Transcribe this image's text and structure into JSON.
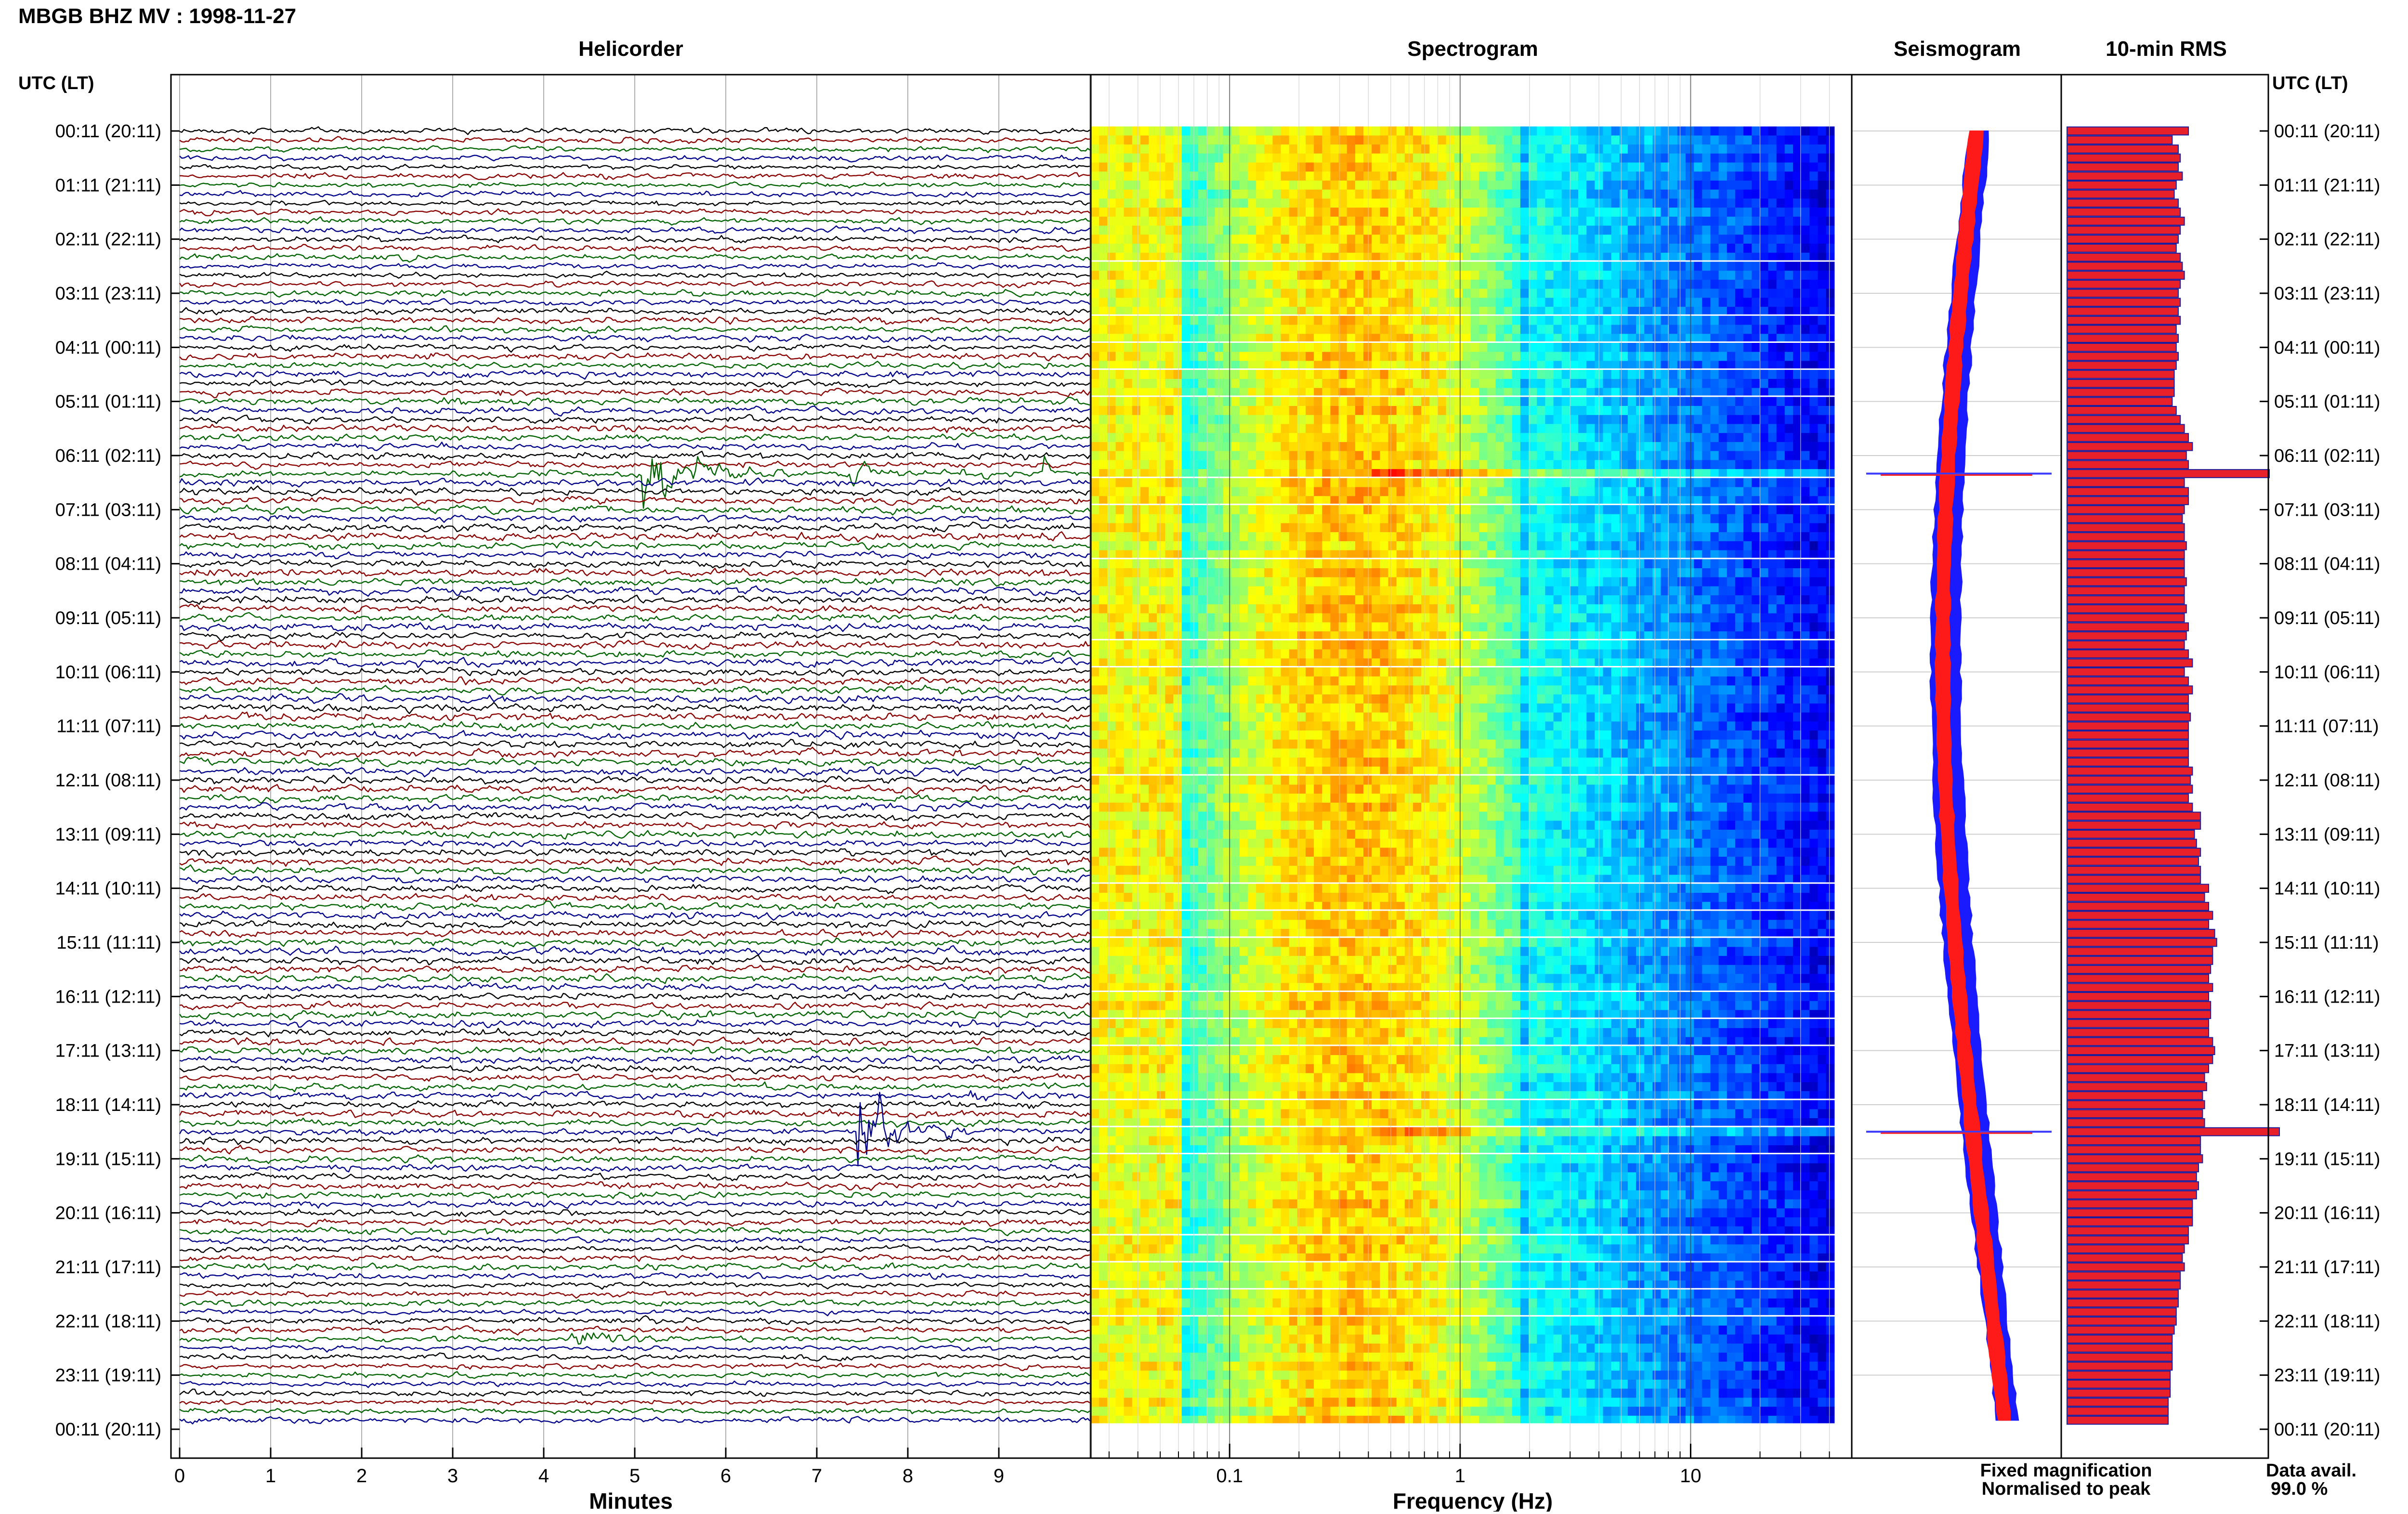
{
  "page": {
    "title": "MBGB BHZ MV : 1998-11-27",
    "time_axis_label": "UTC (LT)"
  },
  "panels": {
    "helicorder": "Helicorder",
    "spectrogram": "Spectrogram",
    "seismogram": "Seismogram",
    "rms": "10-min RMS"
  },
  "hour_labels": [
    "00:11 (20:11)",
    "01:11 (21:11)",
    "02:11 (22:11)",
    "03:11 (23:11)",
    "04:11 (00:11)",
    "05:11 (01:11)",
    "06:11 (02:11)",
    "07:11 (03:11)",
    "08:11 (04:11)",
    "09:11 (05:11)",
    "10:11 (06:11)",
    "11:11 (07:11)",
    "12:11 (08:11)",
    "13:11 (09:11)",
    "14:11 (10:11)",
    "15:11 (11:11)",
    "16:11 (12:11)",
    "17:11 (13:11)",
    "18:11 (14:11)",
    "19:11 (15:11)",
    "20:11 (16:11)",
    "21:11 (17:11)",
    "22:11 (18:11)",
    "23:11 (19:11)",
    "00:11 (20:11)"
  ],
  "legend": {
    "fixed": "Fixed magnification",
    "normalised": "Normalised to peak",
    "fixed_color": "#0000ff",
    "normalised_color": "#ff0000",
    "avail_label": "Data avail.",
    "avail_value": "99.0 %"
  },
  "colors": {
    "trace_cycle": [
      "#000000",
      "#8b0000",
      "#006400",
      "#00008b"
    ],
    "rms_bar": "#e8202a",
    "rms_edge": "#1e1e9c"
  },
  "chart_data": [
    {
      "type": "line",
      "name": "helicorder",
      "title": "Helicorder",
      "xlabel": "Minutes",
      "xticks": [
        "0",
        "1",
        "2",
        "3",
        "4",
        "5",
        "6",
        "7",
        "8",
        "9"
      ],
      "xlim": [
        0,
        10
      ],
      "rows": 144,
      "row_minutes": 10,
      "grid": true,
      "events": [
        {
          "row": 38,
          "minute": 5.1,
          "amplitude": 6,
          "duration": 1.6
        },
        {
          "row": 38,
          "minute": 7.4,
          "amplitude": 3.5,
          "duration": 0.5
        },
        {
          "row": 38,
          "minute": 8.6,
          "amplitude": 1.2,
          "duration": 0.4
        },
        {
          "row": 38,
          "minute": 9.5,
          "amplitude": 1.5,
          "duration": 0.3
        },
        {
          "row": 111,
          "minute": 7.45,
          "amplitude": 7,
          "duration": 1.3
        },
        {
          "row": 107,
          "minute": 8.7,
          "amplitude": 2.2,
          "duration": 0.3
        },
        {
          "row": 134,
          "minute": 4.3,
          "amplitude": 1.8,
          "duration": 1.2
        }
      ]
    },
    {
      "type": "heatmap",
      "name": "spectrogram",
      "title": "Spectrogram",
      "xlabel": "Frequency (Hz)",
      "xscale": "log",
      "xlim": [
        0.025,
        50
      ],
      "xticks": [
        "0.1",
        "1",
        "10"
      ],
      "colormap": "jet"
    },
    {
      "type": "line",
      "name": "seismogram",
      "title": "Seismogram",
      "series": [
        {
          "name": "Fixed magnification"
        },
        {
          "name": "Normalised to peak"
        }
      ],
      "spikes_rows": [
        38,
        111
      ]
    },
    {
      "type": "bar",
      "name": "rms",
      "title": "10-min RMS",
      "values": [
        0.6,
        0.52,
        0.55,
        0.56,
        0.55,
        0.57,
        0.54,
        0.53,
        0.55,
        0.56,
        0.58,
        0.56,
        0.55,
        0.54,
        0.56,
        0.57,
        0.58,
        0.56,
        0.55,
        0.56,
        0.55,
        0.56,
        0.54,
        0.55,
        0.54,
        0.55,
        0.54,
        0.53,
        0.53,
        0.53,
        0.52,
        0.54,
        0.56,
        0.58,
        0.6,
        0.62,
        0.59,
        0.6,
        1.0,
        0.58,
        0.6,
        0.6,
        0.58,
        0.57,
        0.58,
        0.58,
        0.59,
        0.58,
        0.58,
        0.58,
        0.59,
        0.58,
        0.58,
        0.59,
        0.58,
        0.6,
        0.59,
        0.58,
        0.6,
        0.62,
        0.58,
        0.6,
        0.62,
        0.6,
        0.6,
        0.61,
        0.6,
        0.6,
        0.6,
        0.6,
        0.6,
        0.62,
        0.61,
        0.62,
        0.6,
        0.62,
        0.66,
        0.66,
        0.63,
        0.64,
        0.66,
        0.65,
        0.66,
        0.66,
        0.7,
        0.68,
        0.7,
        0.72,
        0.7,
        0.73,
        0.74,
        0.72,
        0.72,
        0.71,
        0.7,
        0.72,
        0.7,
        0.71,
        0.71,
        0.7,
        0.7,
        0.72,
        0.73,
        0.72,
        0.7,
        0.68,
        0.69,
        0.67,
        0.68,
        0.67,
        0.68,
        1.05,
        0.66,
        0.66,
        0.67,
        0.65,
        0.64,
        0.65,
        0.64,
        0.62,
        0.62,
        0.62,
        0.6,
        0.6,
        0.58,
        0.57,
        0.58,
        0.56,
        0.56,
        0.55,
        0.55,
        0.54,
        0.54,
        0.53,
        0.52,
        0.52,
        0.52,
        0.52,
        0.51,
        0.51,
        0.51,
        0.5,
        0.5,
        0.5
      ]
    }
  ]
}
